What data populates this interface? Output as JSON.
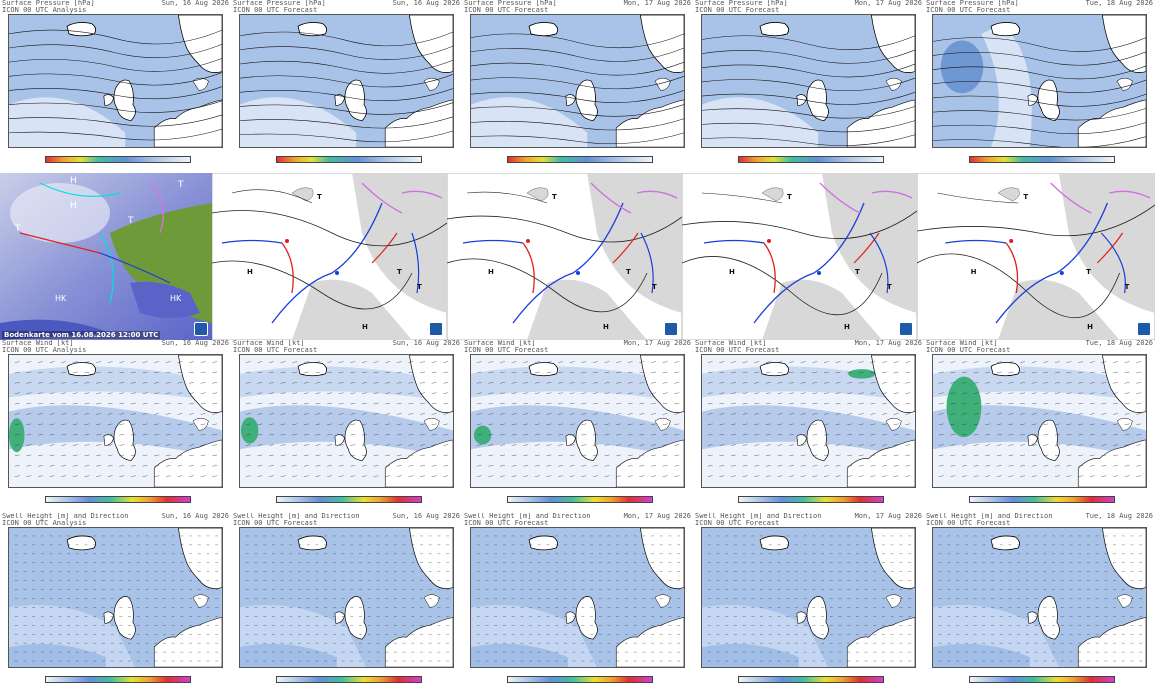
{
  "rows": {
    "pressure": {
      "header_line1": "Surface Pressure [hPa]",
      "panels": [
        {
          "line2": "ICON 00 UTC Analysis",
          "date": "Sun, 16 Aug 2026"
        },
        {
          "line2": "ICON 00 UTC Forecast",
          "date": "Sun, 16 Aug 2026"
        },
        {
          "line2": "ICON 00 UTC Forecast",
          "date": "Mon, 17 Aug 2026"
        },
        {
          "line2": "ICON 00 UTC Forecast",
          "date": "Mon, 17 Aug 2026"
        },
        {
          "line2": "ICON 00 UTC Forecast",
          "date": "Tue, 18 Aug 2026"
        }
      ]
    },
    "wind": {
      "header_line1": "Surface Wind [kt]",
      "panels": [
        {
          "line2": "ICON 00 UTC Analysis",
          "date": "Sun, 16 Aug 2026"
        },
        {
          "line2": "ICON 00 UTC Forecast",
          "date": "Sun, 16 Aug 2026"
        },
        {
          "line2": "ICON 00 UTC Forecast",
          "date": "Mon, 17 Aug 2026"
        },
        {
          "line2": "ICON 00 UTC Forecast",
          "date": "Mon, 17 Aug 2026"
        },
        {
          "line2": "ICON 00 UTC Forecast",
          "date": "Tue, 18 Aug 2026"
        }
      ]
    },
    "swell": {
      "header_line1": "Swell Height [m] and Direction",
      "panels": [
        {
          "line2": "ICON 00 UTC Analysis",
          "date": "Sun, 16 Aug 2026"
        },
        {
          "line2": "ICON 00 UTC Forecast",
          "date": "Sun, 16 Aug 2026"
        },
        {
          "line2": "ICON 00 UTC Forecast",
          "date": "Mon, 17 Aug 2026"
        },
        {
          "line2": "ICON 00 UTC Forecast",
          "date": "Mon, 17 Aug 2026"
        },
        {
          "line2": "ICON 00 UTC Forecast",
          "date": "Tue, 18 Aug 2026"
        }
      ]
    }
  },
  "satellite": {
    "caption": "Bodenkarte vom 16.08.2026 12:00 UTC"
  },
  "fronts_labels": {
    "high": "H",
    "low": "T"
  },
  "colors": {
    "sea_light": "#dde8f7",
    "sea_mid": "#a9c3e8",
    "sea_dark": "#7ea5dc",
    "land": "#ffffff",
    "front_cold": "#1a3ed8",
    "front_warm": "#e02020",
    "front_occluded": "#d070e0",
    "land_grey": "#d8d8d8"
  }
}
